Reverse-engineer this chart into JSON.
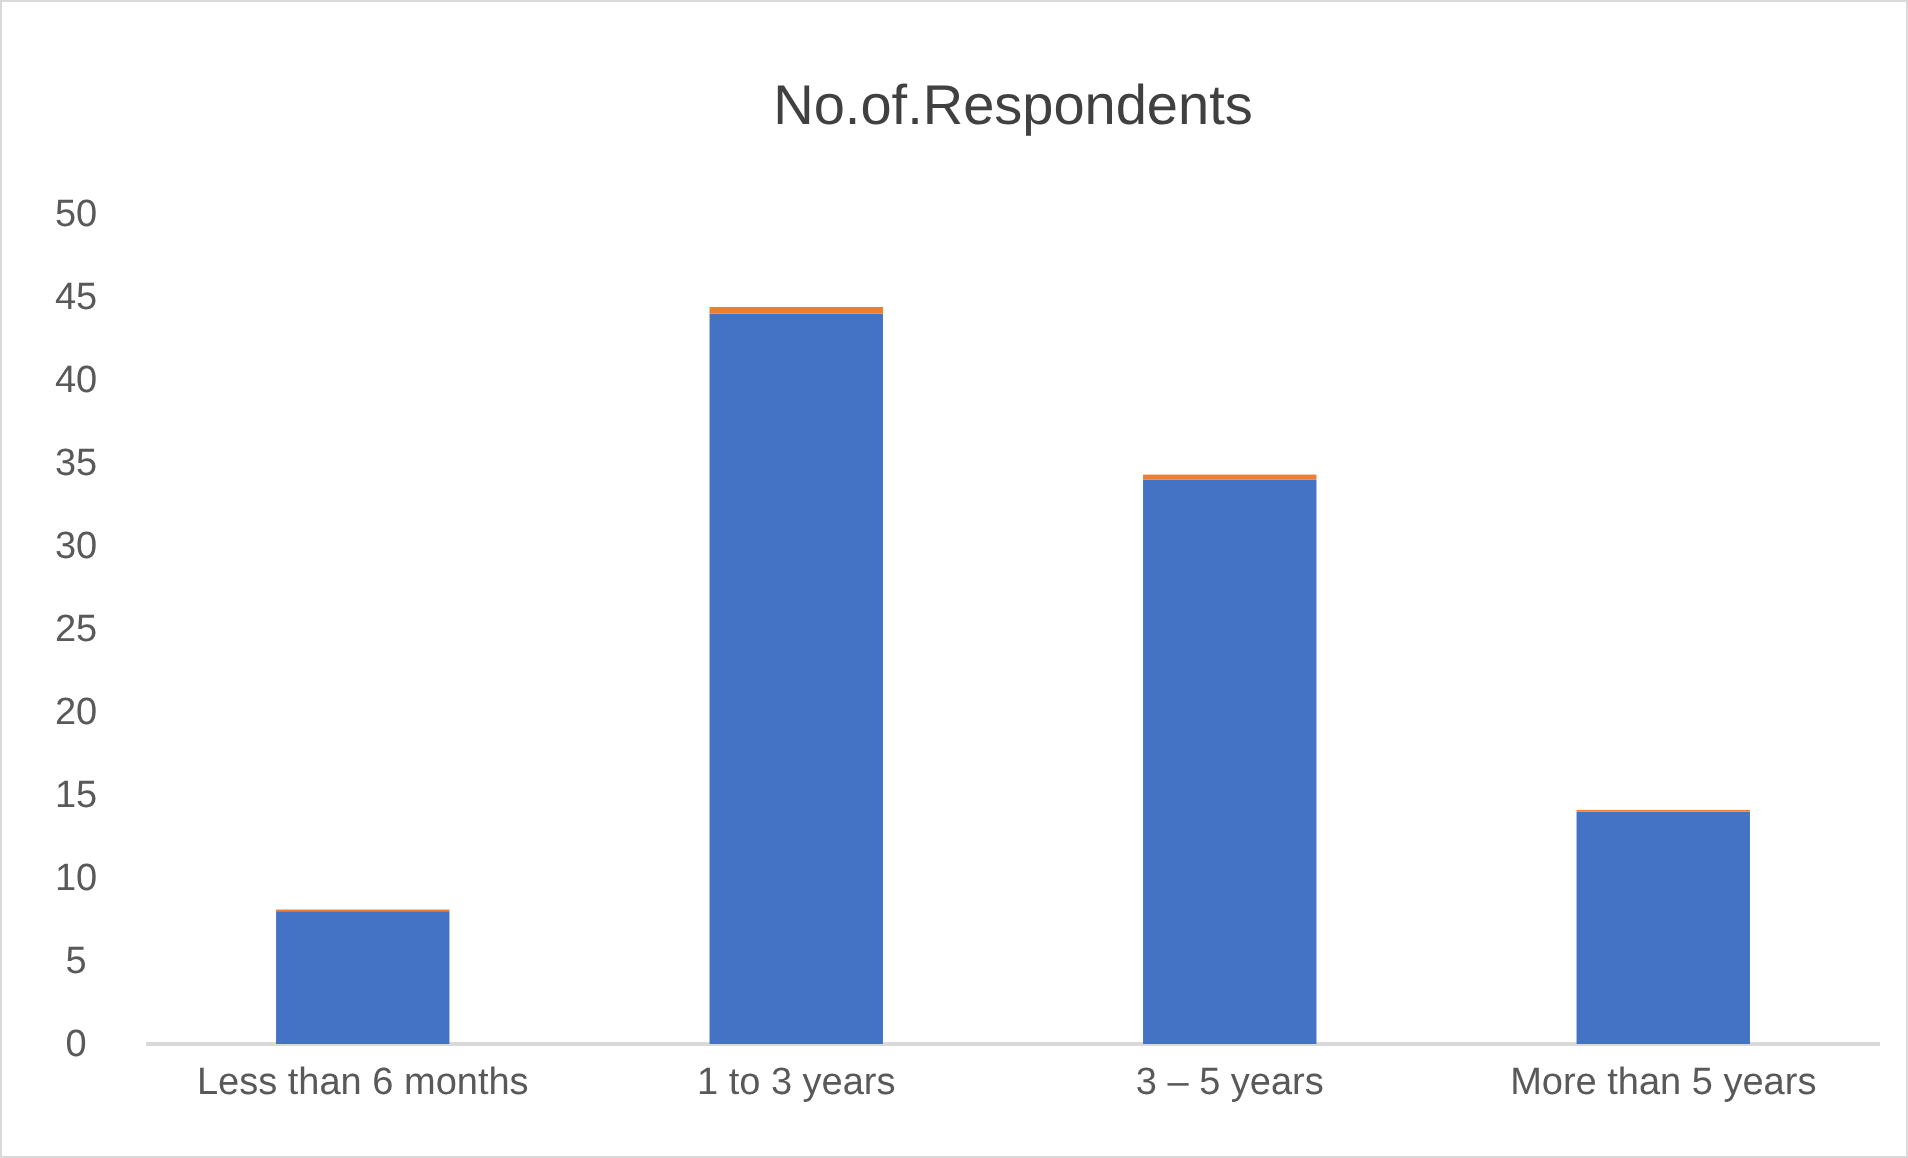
{
  "chart_data": {
    "type": "bar",
    "title": "No.of.Respondents",
    "categories": [
      "Less than 6 months",
      "1 to 3 years",
      "3 – 5 years",
      "More than 5 years"
    ],
    "stacked": true,
    "series": [
      {
        "color": "#4472c4",
        "values": [
          8,
          44,
          34,
          14
        ]
      },
      {
        "color": "#ed7d31",
        "values": [
          0.1,
          0.4,
          0.3,
          0.1
        ]
      }
    ],
    "ylim": [
      0,
      50
    ],
    "yticks": [
      0,
      5,
      10,
      15,
      20,
      25,
      30,
      35,
      40,
      45,
      50
    ],
    "grid": false
  }
}
